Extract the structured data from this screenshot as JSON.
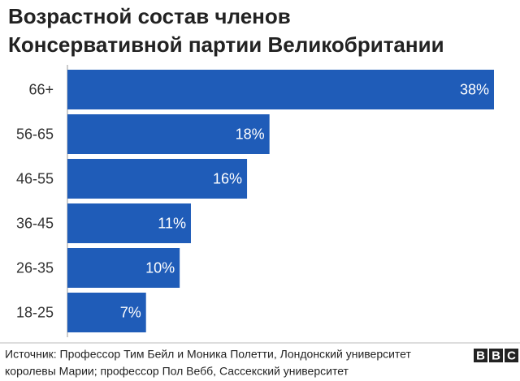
{
  "chart_data": {
    "type": "bar",
    "orientation": "horizontal",
    "title": [
      "Возрастной состав  членов",
      "Консервативной партии Великобритании"
    ],
    "categories": [
      "66+",
      "56-65",
      "46-55",
      "36-45",
      "26-35",
      "18-25"
    ],
    "values": [
      38,
      18,
      16,
      11,
      10,
      7
    ],
    "value_labels": [
      "38%",
      "18%",
      "16%",
      "11%",
      "10%",
      "7%"
    ],
    "color": "#1f5cb8",
    "source": [
      "Источник: Профессор Тим Бейл и Моника Полетти, Лондонский университет",
      "королевы Марии; профессор Пол Вебб, Сассекский университет"
    ],
    "logo": [
      "B",
      "B",
      "C"
    ]
  }
}
